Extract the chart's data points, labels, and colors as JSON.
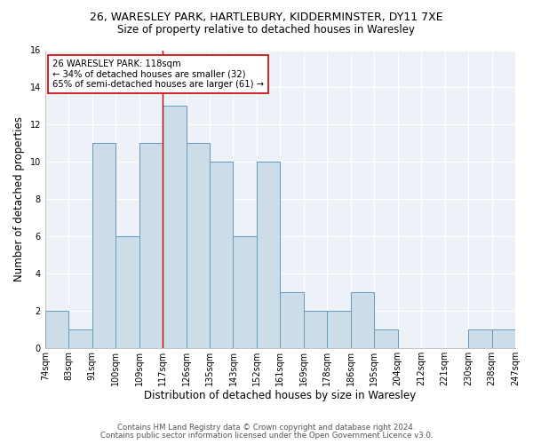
{
  "title1": "26, WARESLEY PARK, HARTLEBURY, KIDDERMINSTER, DY11 7XE",
  "title2": "Size of property relative to detached houses in Waresley",
  "xlabel": "Distribution of detached houses by size in Waresley",
  "ylabel": "Number of detached properties",
  "bin_edges_labels": [
    "74sqm",
    "83sqm",
    "91sqm",
    "100sqm",
    "109sqm",
    "117sqm",
    "126sqm",
    "135sqm",
    "143sqm",
    "152sqm",
    "161sqm",
    "169sqm",
    "178sqm",
    "186sqm",
    "195sqm",
    "204sqm",
    "212sqm",
    "221sqm",
    "230sqm",
    "238sqm",
    "247sqm"
  ],
  "bar_heights": [
    2,
    1,
    11,
    6,
    11,
    13,
    11,
    10,
    6,
    10,
    3,
    2,
    2,
    3,
    1,
    0,
    0,
    0,
    1,
    1
  ],
  "bar_color": "#ccdce8",
  "bar_edge_color": "#6699bb",
  "vline_index": 5,
  "vline_color": "#cc0000",
  "annotation_text": "26 WARESLEY PARK: 118sqm\n← 34% of detached houses are smaller (32)\n65% of semi-detached houses are larger (61) →",
  "annotation_box_color": "#ffffff",
  "annotation_box_edge": "#cc0000",
  "ylim": [
    0,
    16
  ],
  "yticks": [
    0,
    2,
    4,
    6,
    8,
    10,
    12,
    14,
    16
  ],
  "footer1": "Contains HM Land Registry data © Crown copyright and database right 2024.",
  "footer2": "Contains public sector information licensed under the Open Government Licence v3.0.",
  "fig_background_color": "#ffffff",
  "plot_background": "#edf2f8",
  "grid_color": "#ffffff",
  "title1_fontsize": 9.0,
  "title2_fontsize": 8.5
}
